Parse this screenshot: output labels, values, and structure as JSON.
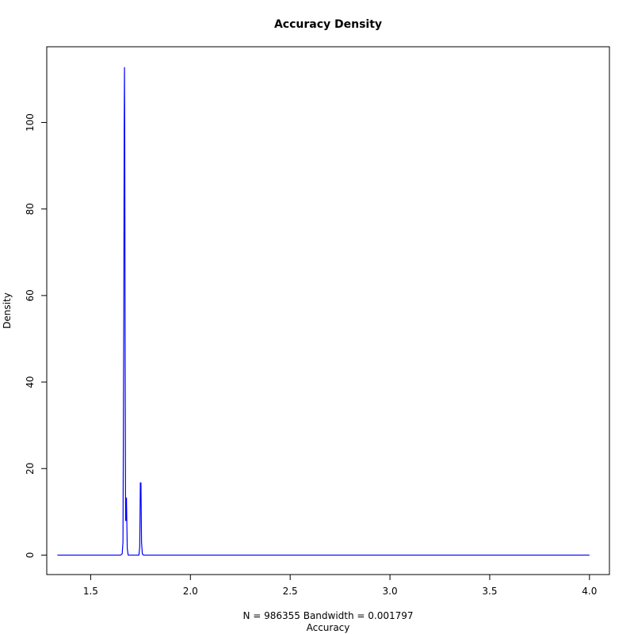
{
  "chart_data": {
    "type": "line",
    "title": "Accuracy Density",
    "xlabel": "Accuracy",
    "sublabel": "N = 986355   Bandwidth = 0.001797",
    "ylabel": "Density",
    "xlim": [
      1.28,
      4.1
    ],
    "ylim": [
      -4.5,
      117.5
    ],
    "x_ticks": [
      1.5,
      2.0,
      2.5,
      3.0,
      3.5,
      4.0
    ],
    "x_tick_labels": [
      "1.5",
      "2.0",
      "2.5",
      "3.0",
      "3.5",
      "4.0"
    ],
    "y_ticks": [
      0,
      20,
      40,
      60,
      80,
      100
    ],
    "y_tick_labels": [
      "0",
      "20",
      "40",
      "60",
      "80",
      "100"
    ],
    "line_color": "#0000ff",
    "grid": false,
    "series": [
      {
        "x": [
          1.333,
          1.65,
          1.658,
          1.662,
          1.666,
          1.668,
          1.6695,
          1.671,
          1.673,
          1.675,
          1.6775,
          1.6795,
          1.6815,
          1.6835,
          1.688,
          1.742,
          1.746,
          1.749,
          1.752,
          1.755,
          1.759,
          1.765,
          4.0
        ],
        "y": [
          0,
          0,
          0.3,
          3,
          55,
          98,
          112.7,
          95,
          45,
          8,
          8,
          13.2,
          7,
          1.5,
          0,
          0,
          2,
          16.7,
          16.7,
          3,
          0.3,
          0,
          0
        ]
      }
    ]
  }
}
